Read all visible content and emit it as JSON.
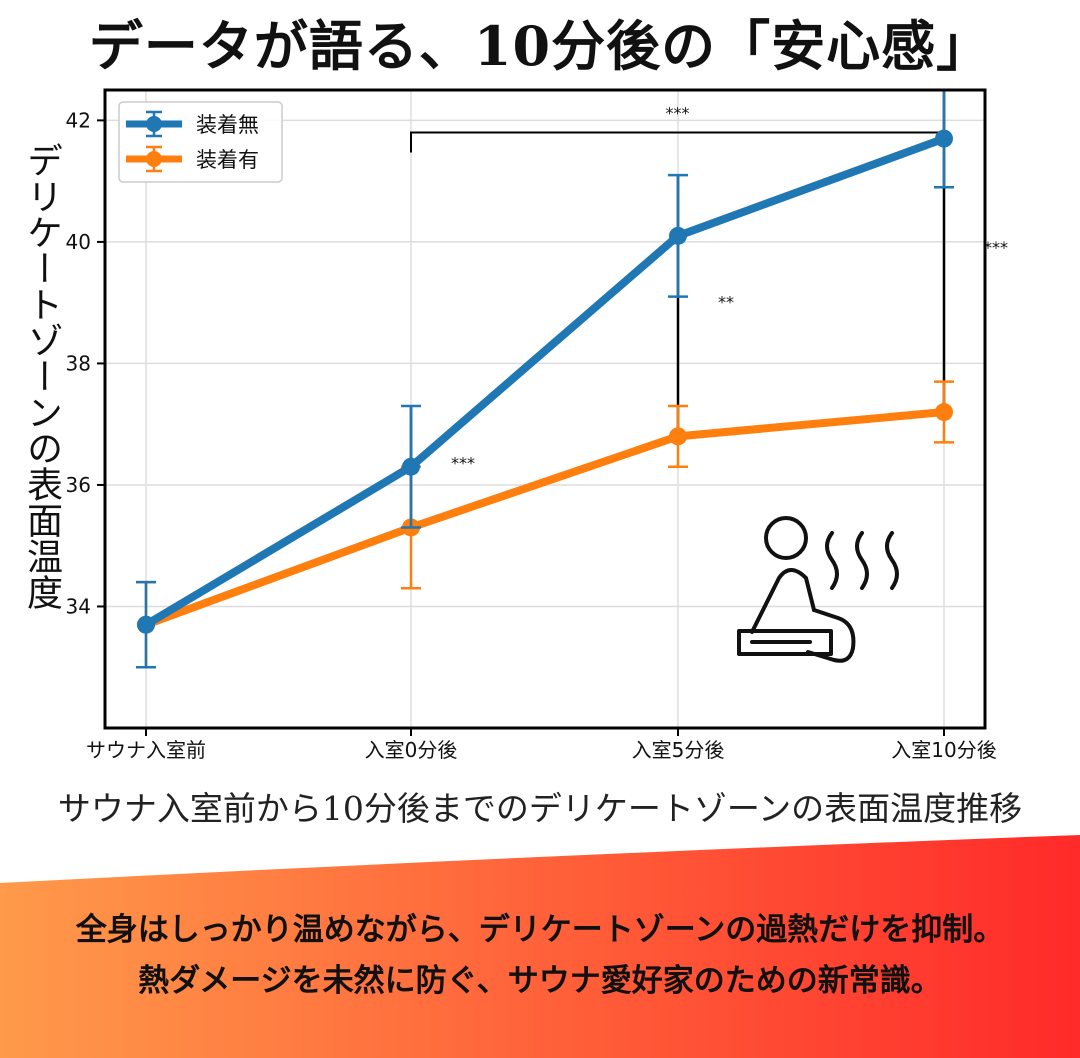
{
  "headline": "データが語る、10分後の「安心感」",
  "caption": "サウナ入室前から10分後までのデリケートゾーンの表面温度推移",
  "footer": {
    "line1": "全身はしっかり温めながら、デリケートゾーンの過熱だけを抑制。",
    "line2": "熱ダメージを未然に防ぐ、サウナ愛好家のための新常識。"
  },
  "colors": {
    "series_blue": "#1f77b4",
    "series_orange": "#ff7f0e",
    "footer_left": "#ff9a4a",
    "footer_right": "#ff2a2a"
  },
  "icon": "sauna-person-icon",
  "chart_data": {
    "type": "line",
    "ylabel": "デリケートゾーンの表面温度",
    "categories": [
      "サウナ入室前",
      "入室0分後",
      "入室5分後",
      "入室10分後"
    ],
    "ylim": [
      32.0,
      42.5
    ],
    "yticks": [
      34,
      36,
      38,
      40,
      42
    ],
    "grid": true,
    "legend_position": "top-left",
    "series": [
      {
        "name": "装着無",
        "color": "#1f77b4",
        "values": [
          33.7,
          36.3,
          40.1,
          41.7
        ],
        "errors": [
          0.7,
          1.0,
          1.0,
          0.8
        ]
      },
      {
        "name": "装着有",
        "color": "#ff7f0e",
        "values": [
          33.7,
          35.3,
          36.8,
          37.2
        ],
        "errors": [
          0.7,
          1.0,
          0.5,
          0.5
        ]
      }
    ],
    "annotations": [
      {
        "text": "***",
        "type": "bracket",
        "from_index": 1,
        "to_index": 3,
        "y": 41.8
      },
      {
        "text": "***",
        "type": "vertical",
        "index": 1
      },
      {
        "text": "**",
        "type": "vertical",
        "index": 2
      },
      {
        "text": "***",
        "type": "vertical",
        "index": 3
      }
    ]
  }
}
